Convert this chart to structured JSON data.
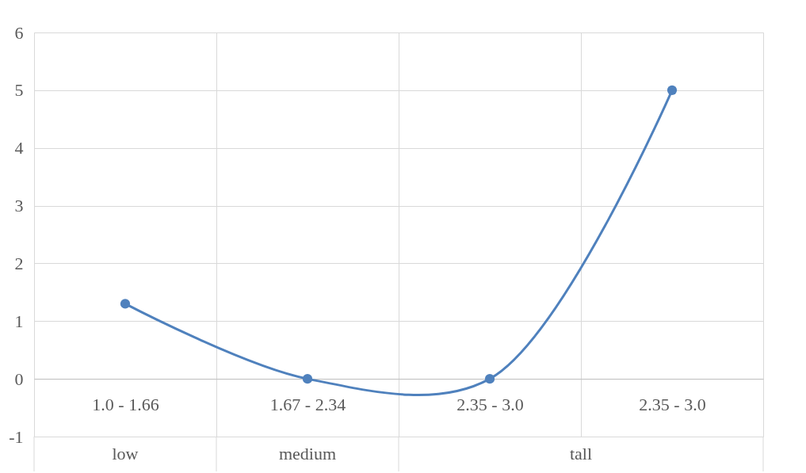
{
  "chart_data": {
    "type": "line",
    "categories": [
      "1.0 - 1.66",
      "1.67 - 2.34",
      "2.35 - 3.0",
      "2.35 - 3.0"
    ],
    "series": [
      {
        "color": "#4f81bd",
        "values": [
          1.3,
          0,
          0,
          5
        ]
      }
    ],
    "ylim": [
      -1,
      6
    ],
    "yticks": [
      -1,
      0,
      1,
      2,
      3,
      4,
      5,
      6
    ],
    "grid": true,
    "marker": "circle",
    "line_style": "solid",
    "legend": false,
    "annotations": [
      "low",
      "medium",
      "tall"
    ]
  }
}
